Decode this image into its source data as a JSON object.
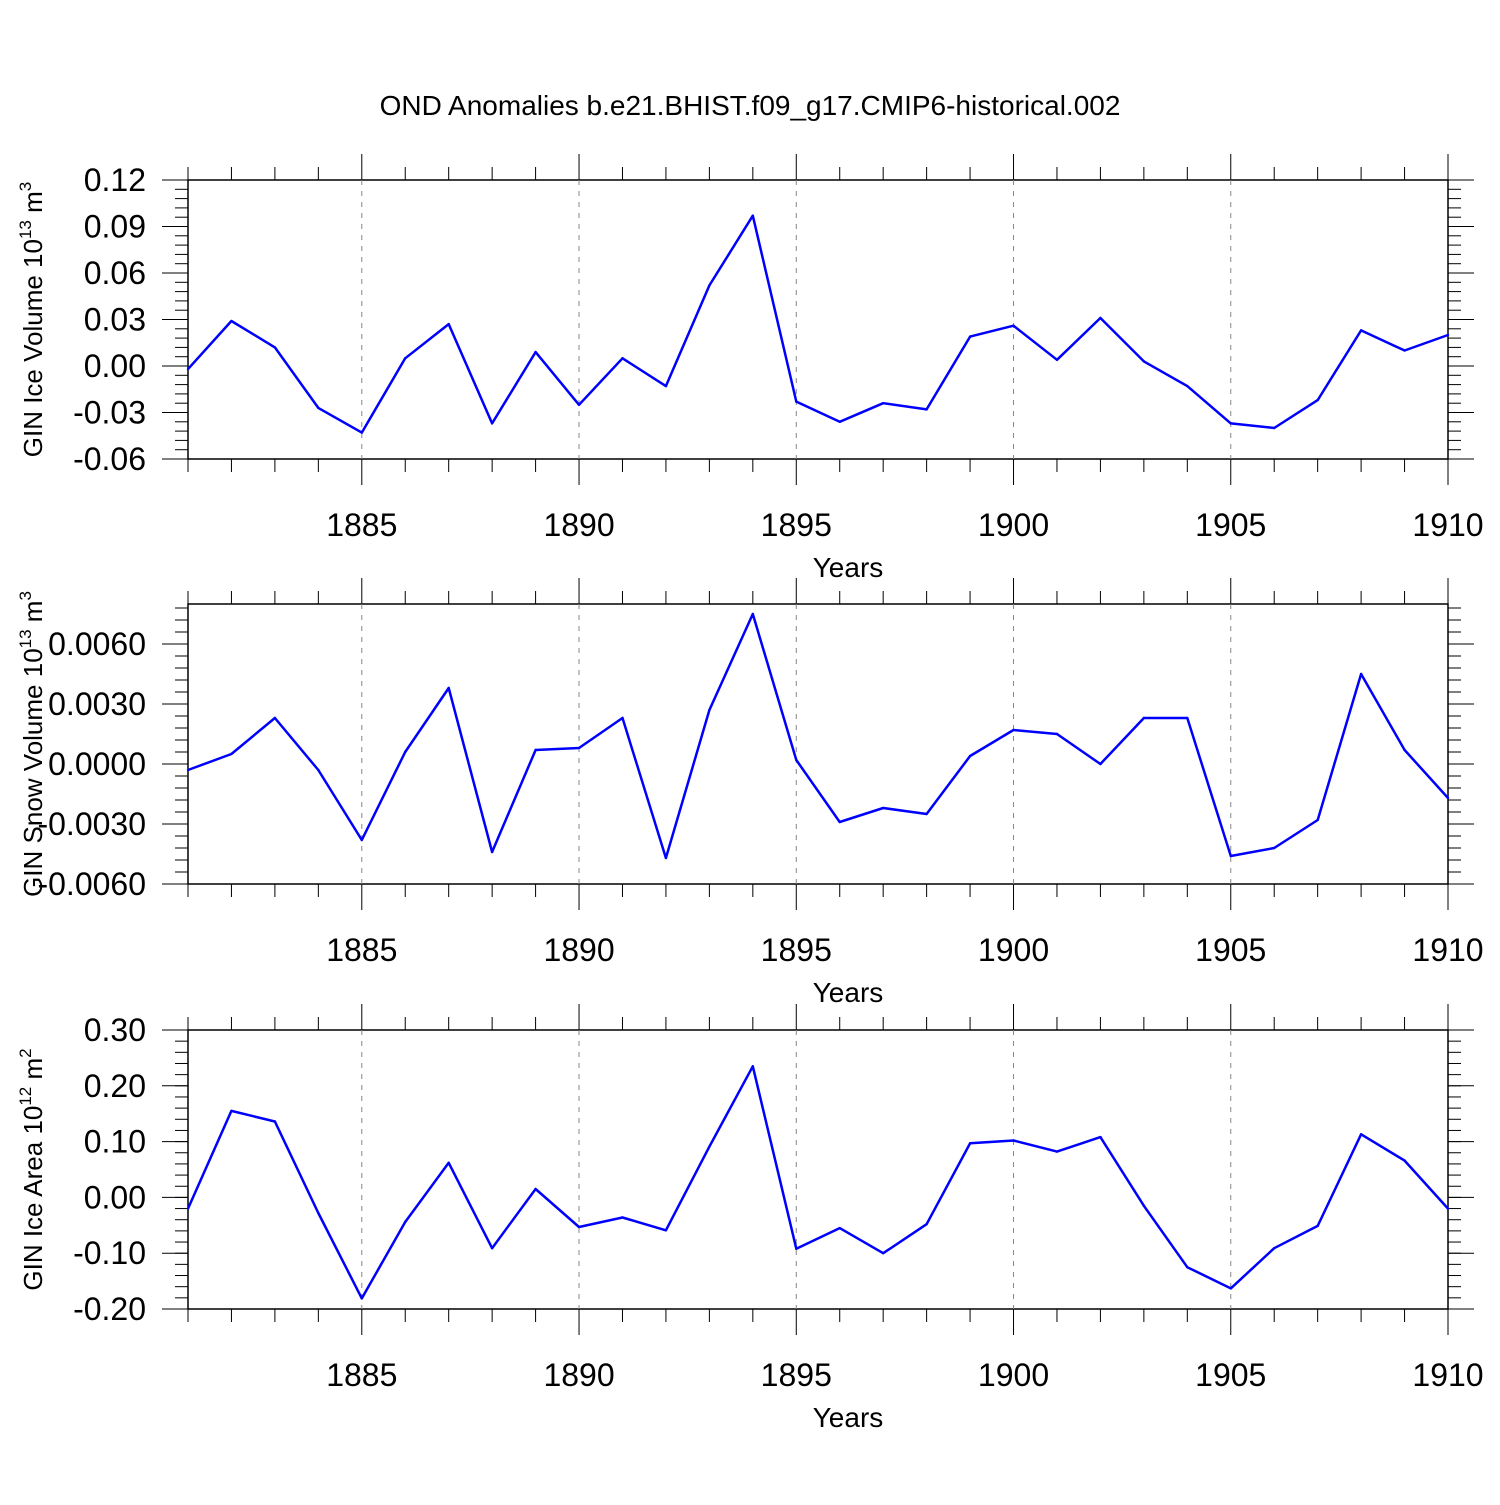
{
  "title": "OND Anomalies b.e21.BHIST.f09_g17.CMIP6-historical.002",
  "colors": {
    "line": "#0000ff",
    "axis": "#000000",
    "grid": "#888888"
  },
  "chart_data": [
    {
      "type": "line",
      "ylabel_base": "GIN Ice Volume 10",
      "ylabel_sup": "13",
      "ylabel_unit": " m",
      "ylabel_unit_sup": "3",
      "xlabel": "Years",
      "xlim": [
        1881,
        1910
      ],
      "ylim": [
        -0.06,
        0.12
      ],
      "xticks": [
        "1885",
        "1890",
        "1895",
        "1900",
        "1905",
        "1910"
      ],
      "yticks": [
        "0.12",
        "0.09",
        "0.06",
        "0.03",
        "0.00",
        "-0.03",
        "-0.06"
      ],
      "series": [
        {
          "name": "GIN Ice Volume",
          "x": [
            1881,
            1882,
            1883,
            1884,
            1885,
            1886,
            1887,
            1888,
            1889,
            1890,
            1891,
            1892,
            1893,
            1894,
            1895,
            1896,
            1897,
            1898,
            1899,
            1900,
            1901,
            1902,
            1903,
            1904,
            1905,
            1906,
            1907,
            1908,
            1909,
            1910
          ],
          "values": [
            -0.002,
            0.029,
            0.012,
            -0.027,
            -0.043,
            0.005,
            0.027,
            -0.037,
            0.009,
            -0.025,
            0.005,
            -0.013,
            0.052,
            0.097,
            -0.023,
            -0.036,
            -0.024,
            -0.028,
            0.019,
            0.026,
            0.004,
            0.031,
            0.003,
            -0.013,
            -0.037,
            -0.04,
            -0.022,
            0.023,
            0.01,
            0.02
          ]
        }
      ]
    },
    {
      "type": "line",
      "ylabel_base": "GIN Snow Volume 10",
      "ylabel_sup": "13",
      "ylabel_unit": " m",
      "ylabel_unit_sup": "3",
      "xlabel": "Years",
      "xlim": [
        1881,
        1910
      ],
      "ylim": [
        -0.006,
        0.008
      ],
      "xticks": [
        "1885",
        "1890",
        "1895",
        "1900",
        "1905",
        "1910"
      ],
      "yticks": [
        "0.0060",
        "0.0030",
        "0.0000",
        "-0.0030",
        "-0.0060"
      ],
      "series": [
        {
          "name": "GIN Snow Volume",
          "x": [
            1881,
            1882,
            1883,
            1884,
            1885,
            1886,
            1887,
            1888,
            1889,
            1890,
            1891,
            1892,
            1893,
            1894,
            1895,
            1896,
            1897,
            1898,
            1899,
            1900,
            1901,
            1902,
            1903,
            1904,
            1905,
            1906,
            1907,
            1908,
            1909,
            1910
          ],
          "values": [
            -0.0003,
            0.0005,
            0.0023,
            -0.0003,
            -0.0038,
            0.0006,
            0.0038,
            -0.0044,
            0.0007,
            0.0008,
            0.0023,
            -0.0047,
            0.0027,
            0.0075,
            0.0002,
            -0.0029,
            -0.0022,
            -0.0025,
            0.0004,
            0.0017,
            0.0015,
            0.0,
            0.0023,
            0.0023,
            -0.0046,
            -0.0042,
            -0.0028,
            0.0045,
            0.0007,
            -0.0017
          ]
        }
      ]
    },
    {
      "type": "line",
      "ylabel_base": "GIN Ice Area 10",
      "ylabel_sup": "12",
      "ylabel_unit": " m",
      "ylabel_unit_sup": "2",
      "xlabel": "Years",
      "xlim": [
        1881,
        1910
      ],
      "ylim": [
        -0.2,
        0.3
      ],
      "xticks": [
        "1885",
        "1890",
        "1895",
        "1900",
        "1905",
        "1910"
      ],
      "yticks": [
        "0.30",
        "0.20",
        "0.10",
        "0.00",
        "-0.10",
        "-0.20"
      ],
      "series": [
        {
          "name": "GIN Ice Area",
          "x": [
            1881,
            1882,
            1883,
            1884,
            1885,
            1886,
            1887,
            1888,
            1889,
            1890,
            1891,
            1892,
            1893,
            1894,
            1895,
            1896,
            1897,
            1898,
            1899,
            1900,
            1901,
            1902,
            1903,
            1904,
            1905,
            1906,
            1907,
            1908,
            1909,
            1910
          ],
          "values": [
            -0.02,
            0.155,
            0.136,
            -0.028,
            -0.181,
            -0.044,
            0.062,
            -0.091,
            0.015,
            -0.053,
            -0.036,
            -0.059,
            0.091,
            0.235,
            -0.092,
            -0.055,
            -0.1,
            -0.048,
            0.097,
            0.102,
            0.082,
            0.108,
            -0.015,
            -0.125,
            -0.163,
            -0.091,
            -0.051,
            0.113,
            0.066,
            -0.02
          ]
        }
      ]
    }
  ]
}
